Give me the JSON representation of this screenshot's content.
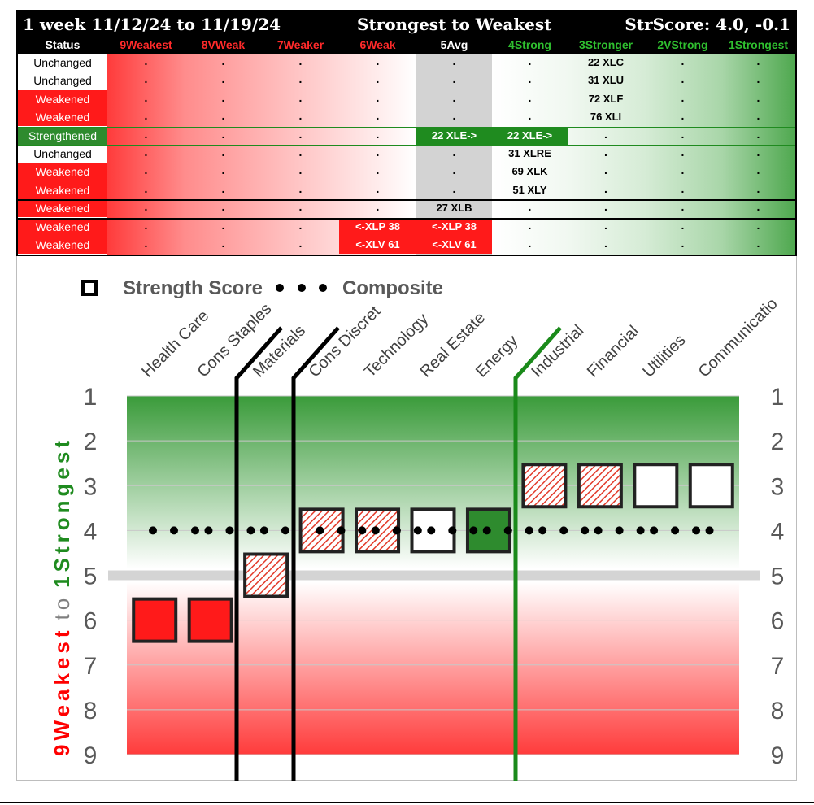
{
  "table": {
    "title_left": "1 week 11/12/24 to 11/19/24",
    "title_center": "Strongest to Weakest",
    "title_right": "StrScore: 4.0, -0.1",
    "headers": [
      "Status",
      "9Weakest",
      "8VWeak",
      "7Weaker",
      "6Weak",
      "5Avg",
      "4Strong",
      "3Stronger",
      "2VStrong",
      "1Strongest"
    ],
    "header_colors": [
      "#ffffff",
      "#ff2a2a",
      "#ff2a2a",
      "#ff2a2a",
      "#ff2a2a",
      "#ffffff",
      "#2fbf2f",
      "#2fbf2f",
      "#2fbf2f",
      "#2fbf2f"
    ],
    "rows": [
      {
        "status": "Unchanged",
        "status_type": "unchanged",
        "cells": [
          ".",
          ".",
          ".",
          ".",
          ".",
          ".",
          "22 XLC",
          ".",
          "."
        ],
        "highlight": {}
      },
      {
        "status": "Unchanged",
        "status_type": "unchanged",
        "cells": [
          ".",
          ".",
          ".",
          ".",
          ".",
          ".",
          "31 XLU",
          ".",
          "."
        ],
        "highlight": {}
      },
      {
        "status": "Weakened",
        "status_type": "weakened",
        "cells": [
          ".",
          ".",
          ".",
          ".",
          ".",
          ".",
          "72 XLF",
          ".",
          "."
        ],
        "highlight": {}
      },
      {
        "status": "Weakened",
        "status_type": "weakened",
        "cells": [
          ".",
          ".",
          ".",
          ".",
          ".",
          ".",
          "76 XLI",
          ".",
          "."
        ],
        "highlight": {}
      },
      {
        "status": "Strengthened",
        "status_type": "strengthened",
        "cells": [
          ".",
          ".",
          ".",
          ".",
          "22 XLE->",
          "22 XLE->",
          ".",
          ".",
          "."
        ],
        "highlight": {
          "4": "green",
          "5": "green"
        }
      },
      {
        "status": "Unchanged",
        "status_type": "unchanged",
        "cells": [
          ".",
          ".",
          ".",
          ".",
          ".",
          "31 XLRE",
          ".",
          ".",
          "."
        ],
        "highlight": {}
      },
      {
        "status": "Weakened",
        "status_type": "weakened",
        "cells": [
          ".",
          ".",
          ".",
          ".",
          ".",
          "69 XLK",
          ".",
          ".",
          "."
        ],
        "highlight": {}
      },
      {
        "status": "Weakened",
        "status_type": "weakened",
        "cells": [
          ".",
          ".",
          ".",
          ".",
          ".",
          "51 XLY",
          ".",
          ".",
          "."
        ],
        "highlight": {}
      },
      {
        "status": "Weakened",
        "status_type": "weakened",
        "cells": [
          ".",
          ".",
          ".",
          ".",
          "27 XLB",
          ".",
          ".",
          ".",
          "."
        ],
        "highlight": {}
      },
      {
        "status": "Weakened",
        "status_type": "weakened",
        "cells": [
          ".",
          ".",
          ".",
          "<-XLP 38",
          "<-XLP 38",
          ".",
          ".",
          ".",
          "."
        ],
        "highlight": {
          "3": "red",
          "4": "red"
        }
      },
      {
        "status": "Weakened",
        "status_type": "weakened",
        "cells": [
          ".",
          ".",
          ".",
          "<-XLV 61",
          "<-XLV 61",
          ".",
          ".",
          ".",
          "."
        ],
        "highlight": {
          "3": "red",
          "4": "red"
        }
      }
    ]
  },
  "chart_data": {
    "type": "scatter",
    "legend": {
      "square_label": "Strength Score",
      "dots_label": "Composite",
      "placement": "top-left"
    },
    "ylabel_red": "9Weakest",
    "ylabel_mid": "to",
    "ylabel_green": "1Strongest",
    "ylim": [
      9,
      1
    ],
    "yticks": [
      "1",
      "2",
      "3",
      "4",
      "5",
      "6",
      "7",
      "8",
      "9"
    ],
    "categories": [
      "Health Care",
      "Cons Staples",
      "Materials",
      "Cons Discret",
      "Technology",
      "Real Estate",
      "Energy",
      "Industrial",
      "Financial",
      "Utilities",
      "Communicatio"
    ],
    "series": [
      {
        "name": "Strength Score",
        "values": [
          6,
          6,
          5,
          4,
          4,
          4,
          4,
          3,
          3,
          3,
          3
        ],
        "styles": [
          "red",
          "red",
          "hatch",
          "hatch",
          "hatch",
          "empty",
          "green",
          "hatch",
          "hatch",
          "empty",
          "empty"
        ]
      },
      {
        "name": "Composite",
        "values": [
          4,
          4,
          4,
          4,
          4,
          4,
          4,
          4,
          4,
          4,
          4
        ]
      }
    ],
    "midline": 5,
    "grid": true,
    "colors": {
      "strong": "#2e8b2e",
      "weak": "#ff1a1a",
      "divider_black": "#000000",
      "divider_green": "#1a8a1a"
    }
  }
}
